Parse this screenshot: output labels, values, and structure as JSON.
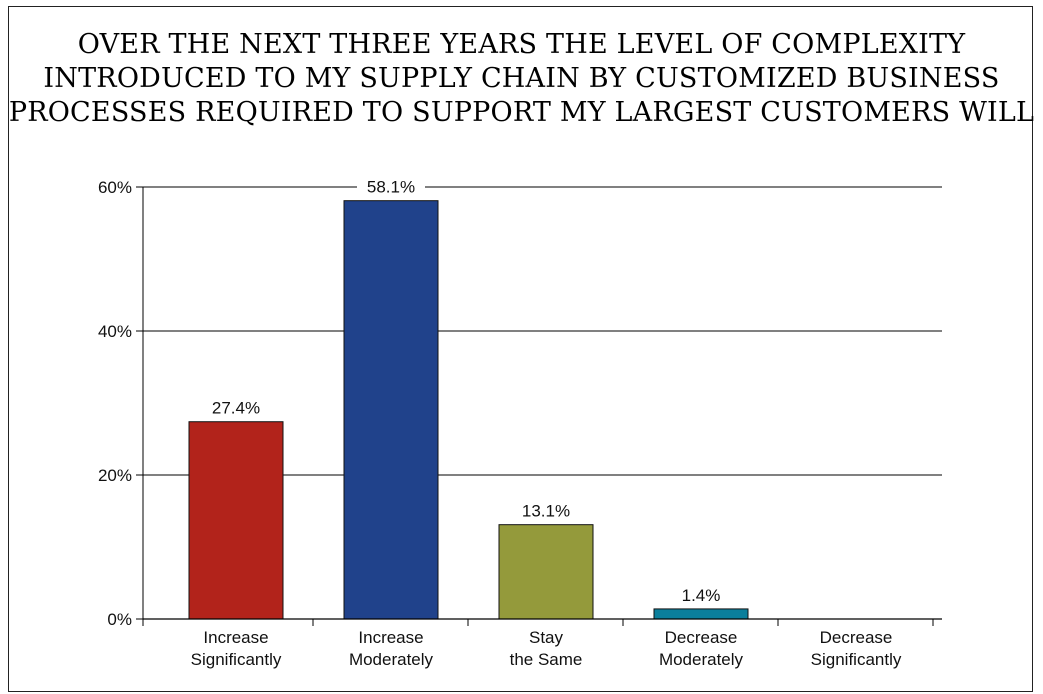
{
  "chart_data": {
    "type": "bar",
    "title_lines": [
      "OVER THE NEXT THREE YEARS THE LEVEL OF COMPLEXITY",
      "INTRODUCED TO MY SUPPLY CHAIN BY CUSTOMIZED BUSINESS",
      "PROCESSES REQUIRED TO SUPPORT MY LARGEST CUSTOMERS WILL"
    ],
    "categories": [
      [
        "Increase",
        "Significantly"
      ],
      [
        "Increase",
        "Moderately"
      ],
      [
        "Stay",
        "the Same"
      ],
      [
        "Decrease",
        "Moderately"
      ],
      [
        "Decrease",
        "Significantly"
      ]
    ],
    "values": [
      27.4,
      58.1,
      13.1,
      1.4,
      0
    ],
    "value_labels": [
      "27.4%",
      "58.1%",
      "13.1%",
      "1.4%",
      ""
    ],
    "colors": [
      "#b2231b",
      "#20428b",
      "#949a3b",
      "#0b7f9c",
      "#888888"
    ],
    "yticks": [
      "0%",
      "20%",
      "40%",
      "60%"
    ],
    "ytick_values": [
      0,
      20,
      40,
      60
    ],
    "ylim": [
      0,
      60
    ],
    "grid": true
  }
}
